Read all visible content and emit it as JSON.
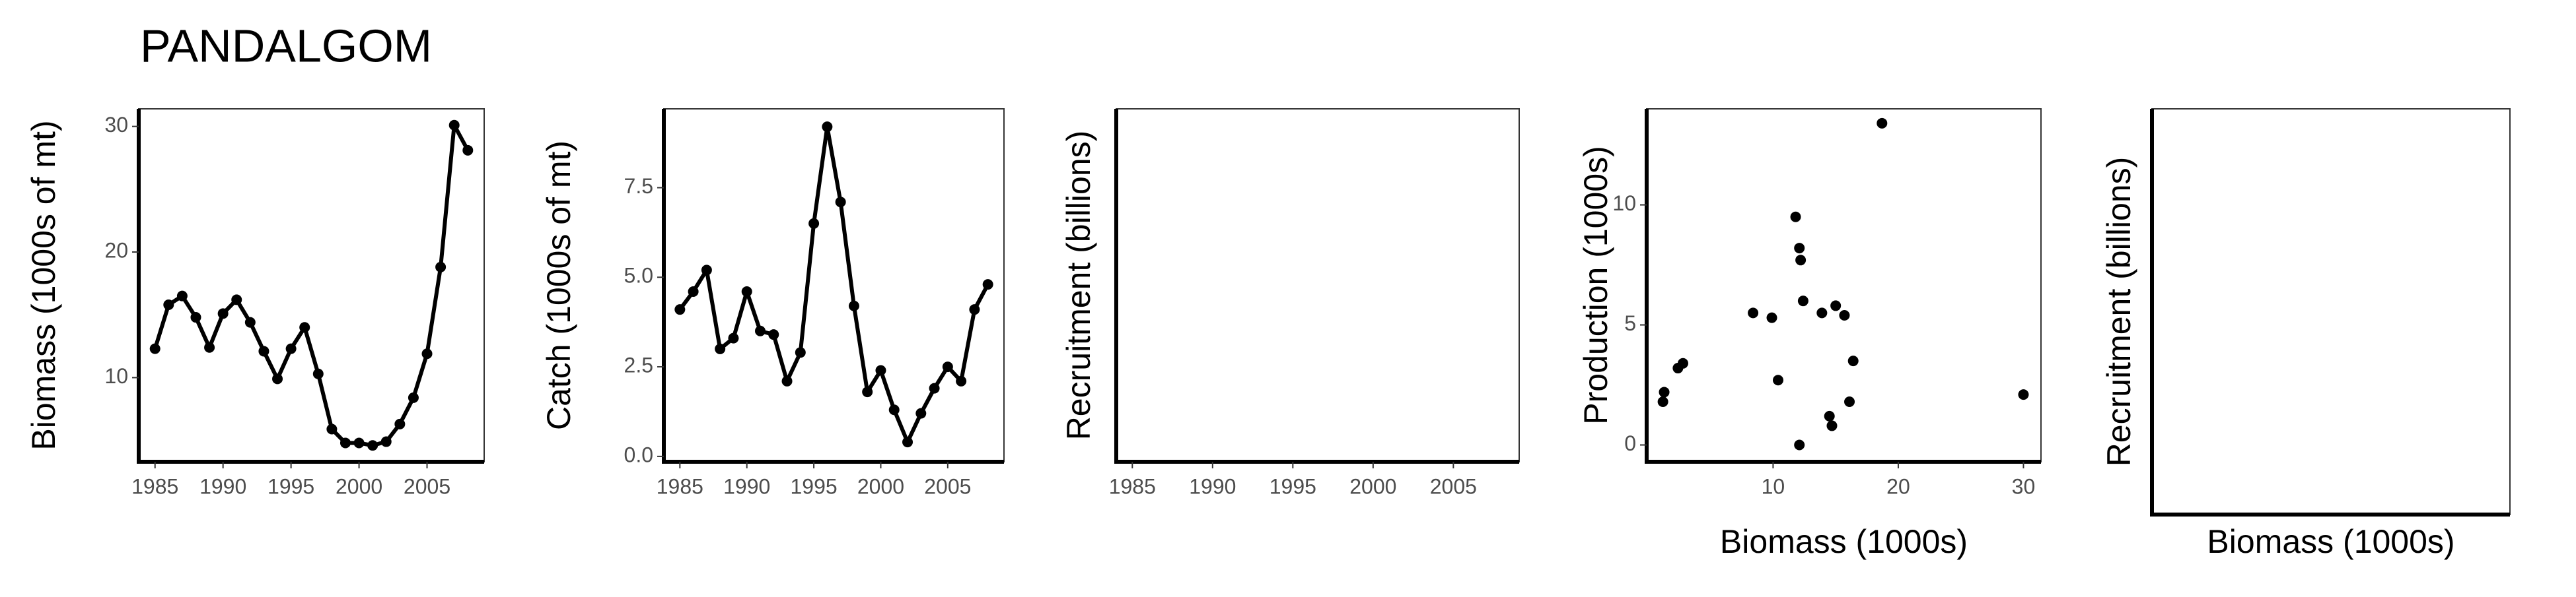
{
  "title": "PANDALGOM",
  "chart_data": [
    {
      "type": "line",
      "ylabel": "Biomass (1000s of mt)",
      "x": [
        1985,
        1986,
        1987,
        1988,
        1989,
        1990,
        1991,
        1992,
        1993,
        1994,
        1995,
        1996,
        1997,
        1998,
        1999,
        2000,
        2001,
        2002,
        2003,
        2004,
        2005,
        2006,
        2007,
        2008
      ],
      "values": [
        12.3,
        15.8,
        16.5,
        14.8,
        12.4,
        15.1,
        16.2,
        14.4,
        12.1,
        9.9,
        12.3,
        14.0,
        10.3,
        5.9,
        4.8,
        4.8,
        4.6,
        4.9,
        6.3,
        8.4,
        11.9,
        18.8,
        30.1,
        28.1
      ],
      "xlim": [
        1983.8,
        2009.2
      ],
      "xticks": [
        1985,
        1990,
        1995,
        2000,
        2005
      ],
      "ylim": [
        3.3,
        31.4
      ],
      "yticks": [
        10,
        20,
        30
      ]
    },
    {
      "type": "line",
      "ylabel": "Catch (1000s of mt)",
      "x": [
        1985,
        1986,
        1987,
        1988,
        1989,
        1990,
        1991,
        1992,
        1993,
        1994,
        1995,
        1996,
        1997,
        1998,
        1999,
        2000,
        2001,
        2002,
        2003,
        2004,
        2005,
        2006,
        2007,
        2008
      ],
      "values": [
        4.1,
        4.6,
        5.2,
        3.0,
        3.3,
        4.6,
        3.5,
        3.4,
        2.1,
        2.9,
        6.5,
        9.2,
        7.1,
        4.2,
        1.8,
        2.4,
        1.3,
        0.4,
        1.2,
        1.9,
        2.5,
        2.1,
        4.1,
        4.8
      ],
      "xlim": [
        1983.8,
        2009.2
      ],
      "xticks": [
        1985,
        1990,
        1995,
        2000,
        2005
      ],
      "ylim": [
        -0.15,
        9.7
      ],
      "yticks": [
        {
          "value": 0,
          "label": "0.0"
        },
        2.5,
        {
          "value": 5,
          "label": "5.0"
        },
        7.5
      ]
    },
    {
      "type": "line",
      "ylabel": "Recruitment (billions)",
      "xlim": [
        1984.0,
        2009.1
      ],
      "xticks": [
        1985,
        1990,
        1995,
        2000,
        2005
      ]
    },
    {
      "type": "scatter",
      "ylabel": "Production (1000s)",
      "xlabel": "Biomass (1000s)",
      "x": [
        1.2,
        1.3,
        2.4,
        2.8,
        8.4,
        9.9,
        10.4,
        11.8,
        12.1,
        12.2,
        12.4,
        12.1,
        13.9,
        14.5,
        14.7,
        15.0,
        15.7,
        16.1,
        16.4,
        18.7,
        30.0
      ],
      "values": [
        1.8,
        2.2,
        3.2,
        3.4,
        5.5,
        5.3,
        2.7,
        9.5,
        8.2,
        7.7,
        6.0,
        0.0,
        5.5,
        1.2,
        0.8,
        5.8,
        5.4,
        1.8,
        3.5,
        13.4,
        2.1
      ],
      "xlim": [
        -0.1,
        31.4
      ],
      "xticks": [
        10,
        20,
        30
      ],
      "ylim": [
        -0.7,
        14.0
      ],
      "yticks": [
        0,
        5,
        10
      ]
    },
    {
      "type": "scatter",
      "ylabel": "Recruitment (billions)",
      "xlabel": "Biomass (1000s)"
    }
  ]
}
